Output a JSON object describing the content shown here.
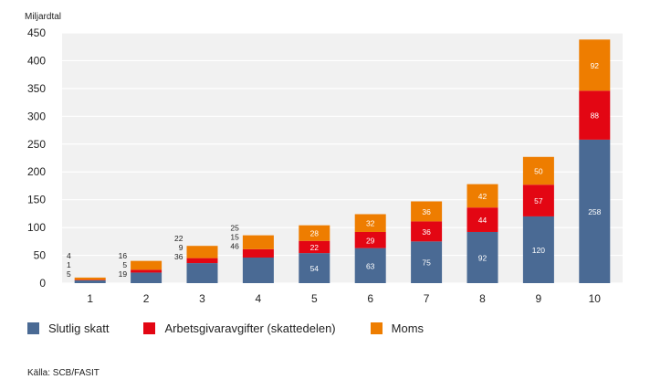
{
  "chart_data": {
    "type": "stacked-bar",
    "ylabel": "Miljardtal",
    "ylim": [
      0,
      450
    ],
    "yticks": [
      0,
      50,
      100,
      150,
      200,
      250,
      300,
      350,
      400,
      450
    ],
    "grid": true,
    "categories": [
      "1",
      "2",
      "3",
      "4",
      "5",
      "6",
      "7",
      "8",
      "9",
      "10"
    ],
    "series": [
      {
        "name": "Slutlig skatt",
        "color": "#4a6a94",
        "values": [
          5,
          19,
          36,
          46,
          54,
          63,
          75,
          92,
          120,
          258
        ]
      },
      {
        "name": "Arbetsgivaravgifter (skattedelen)",
        "color": "#e30613",
        "values": [
          1,
          5,
          9,
          15,
          22,
          29,
          36,
          44,
          57,
          88
        ]
      },
      {
        "name": "Moms",
        "color": "#ee7d00",
        "values": [
          4,
          16,
          22,
          25,
          28,
          32,
          36,
          42,
          50,
          92
        ]
      }
    ],
    "legend_position": "bottom-left"
  },
  "source": "Källa: SCB/FASIT"
}
